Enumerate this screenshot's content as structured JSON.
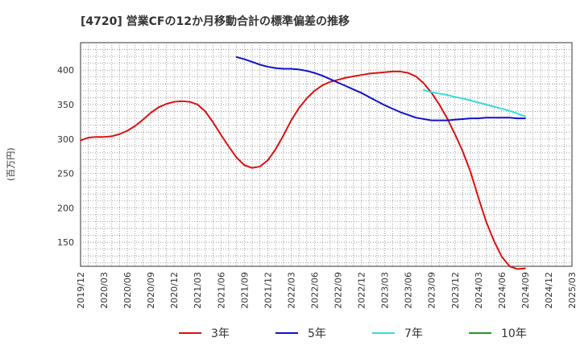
{
  "title": "[4720]  営業CFの12か月移動合計の標準偏差の推移",
  "y_unit": "(百万円)",
  "chart_data": {
    "type": "line",
    "grid": true,
    "x_ticks": [
      "2019/12",
      "2020/03",
      "2020/06",
      "2020/09",
      "2020/12",
      "2021/03",
      "2021/06",
      "2021/09",
      "2021/12",
      "2022/03",
      "2022/06",
      "2022/09",
      "2022/12",
      "2023/03",
      "2023/06",
      "2023/09",
      "2023/12",
      "2024/03",
      "2024/06",
      "2024/09",
      "2024/12",
      "2025/03"
    ],
    "y_ticks": [
      150,
      200,
      250,
      300,
      350,
      400
    ],
    "ylim": [
      115,
      440
    ],
    "legend_position": "bottom",
    "series": [
      {
        "name": "3年",
        "color": "#dd1111",
        "points": [
          [
            "2019/12",
            298
          ],
          [
            "2020/01",
            302
          ],
          [
            "2020/02",
            303
          ],
          [
            "2020/03",
            303
          ],
          [
            "2020/04",
            304
          ],
          [
            "2020/05",
            307
          ],
          [
            "2020/06",
            312
          ],
          [
            "2020/07",
            319
          ],
          [
            "2020/08",
            328
          ],
          [
            "2020/09",
            338
          ],
          [
            "2020/10",
            346
          ],
          [
            "2020/11",
            351
          ],
          [
            "2020/12",
            354
          ],
          [
            "2021/01",
            355
          ],
          [
            "2021/02",
            354
          ],
          [
            "2021/03",
            350
          ],
          [
            "2021/04",
            340
          ],
          [
            "2021/05",
            324
          ],
          [
            "2021/06",
            306
          ],
          [
            "2021/07",
            289
          ],
          [
            "2021/08",
            273
          ],
          [
            "2021/09",
            262
          ],
          [
            "2021/10",
            258
          ],
          [
            "2021/11",
            260
          ],
          [
            "2021/12",
            269
          ],
          [
            "2022/01",
            285
          ],
          [
            "2022/02",
            305
          ],
          [
            "2022/03",
            327
          ],
          [
            "2022/04",
            345
          ],
          [
            "2022/05",
            359
          ],
          [
            "2022/06",
            370
          ],
          [
            "2022/07",
            378
          ],
          [
            "2022/08",
            383
          ],
          [
            "2022/09",
            386
          ],
          [
            "2022/10",
            389
          ],
          [
            "2022/11",
            391
          ],
          [
            "2022/12",
            393
          ],
          [
            "2023/01",
            395
          ],
          [
            "2023/02",
            396
          ],
          [
            "2023/03",
            397
          ],
          [
            "2023/04",
            398
          ],
          [
            "2023/05",
            398
          ],
          [
            "2023/06",
            396
          ],
          [
            "2023/07",
            391
          ],
          [
            "2023/08",
            381
          ],
          [
            "2023/09",
            367
          ],
          [
            "2023/10",
            350
          ],
          [
            "2023/11",
            330
          ],
          [
            "2023/12",
            307
          ],
          [
            "2024/01",
            282
          ],
          [
            "2024/02",
            252
          ],
          [
            "2024/03",
            215
          ],
          [
            "2024/04",
            180
          ],
          [
            "2024/05",
            152
          ],
          [
            "2024/06",
            129
          ],
          [
            "2024/07",
            115
          ],
          [
            "2024/08",
            111
          ],
          [
            "2024/09",
            112
          ]
        ]
      },
      {
        "name": "5年",
        "color": "#1111cc",
        "points": [
          [
            "2021/08",
            419
          ],
          [
            "2021/09",
            416
          ],
          [
            "2021/10",
            412
          ],
          [
            "2021/11",
            408
          ],
          [
            "2021/12",
            405
          ],
          [
            "2022/01",
            403
          ],
          [
            "2022/02",
            402
          ],
          [
            "2022/03",
            402
          ],
          [
            "2022/04",
            401
          ],
          [
            "2022/05",
            399
          ],
          [
            "2022/06",
            396
          ],
          [
            "2022/07",
            392
          ],
          [
            "2022/08",
            387
          ],
          [
            "2022/09",
            382
          ],
          [
            "2022/10",
            377
          ],
          [
            "2022/11",
            372
          ],
          [
            "2022/12",
            367
          ],
          [
            "2023/01",
            361
          ],
          [
            "2023/02",
            355
          ],
          [
            "2023/03",
            349
          ],
          [
            "2023/04",
            344
          ],
          [
            "2023/05",
            339
          ],
          [
            "2023/06",
            335
          ],
          [
            "2023/07",
            331
          ],
          [
            "2023/08",
            329
          ],
          [
            "2023/09",
            327
          ],
          [
            "2023/10",
            327
          ],
          [
            "2023/11",
            327
          ],
          [
            "2023/12",
            328
          ],
          [
            "2024/01",
            329
          ],
          [
            "2024/02",
            330
          ],
          [
            "2024/03",
            330
          ],
          [
            "2024/04",
            331
          ],
          [
            "2024/05",
            331
          ],
          [
            "2024/06",
            331
          ],
          [
            "2024/07",
            331
          ],
          [
            "2024/08",
            330
          ],
          [
            "2024/09",
            330
          ]
        ]
      },
      {
        "name": "7年",
        "color": "#33dddd",
        "points": [
          [
            "2023/08",
            371
          ],
          [
            "2023/09",
            368
          ],
          [
            "2023/10",
            366
          ],
          [
            "2023/11",
            364
          ],
          [
            "2023/12",
            361
          ],
          [
            "2024/01",
            359
          ],
          [
            "2024/02",
            356
          ],
          [
            "2024/03",
            353
          ],
          [
            "2024/04",
            350
          ],
          [
            "2024/05",
            347
          ],
          [
            "2024/06",
            344
          ],
          [
            "2024/07",
            341
          ],
          [
            "2024/08",
            337
          ],
          [
            "2024/09",
            333
          ]
        ]
      },
      {
        "name": "10年",
        "color": "#229922",
        "points": []
      }
    ]
  }
}
